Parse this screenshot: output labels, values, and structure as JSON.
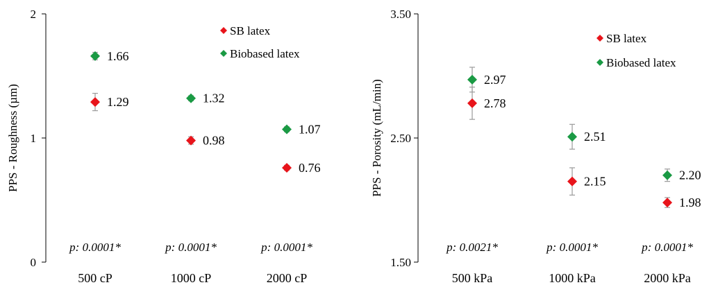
{
  "chart_data": [
    {
      "type": "scatter",
      "ylabel": "PPS - Roughness (µm)",
      "ylim": [
        0,
        2
      ],
      "yticks": [
        "0",
        "1",
        "2"
      ],
      "categories": [
        "500 cP",
        "1000 cP",
        "2000 cP"
      ],
      "series": [
        {
          "name": "SB latex",
          "color": "#e8141b",
          "values": [
            1.29,
            0.98,
            0.76
          ],
          "errors": [
            0.07,
            0.03,
            0.02
          ],
          "labels": [
            "1.29",
            "0.98",
            "0.76"
          ]
        },
        {
          "name": "Biobased latex",
          "color": "#1a9a44",
          "values": [
            1.66,
            1.32,
            1.07
          ],
          "errors": [
            0.03,
            0.02,
            0.02
          ],
          "labels": [
            "1.66",
            "1.32",
            "1.07"
          ]
        }
      ],
      "pvalues": [
        "p: 0.0001*",
        "p: 0.0001*",
        "p: 0.0001*"
      ],
      "legend_position": "top-right",
      "grid": false
    },
    {
      "type": "scatter",
      "ylabel": "PPS - Porosity (mL/min)",
      "ylim": [
        1.5,
        3.5
      ],
      "yticks": [
        "1.50",
        "2.50",
        "3.50"
      ],
      "categories": [
        "500 kPa",
        "1000 kPa",
        "2000 kPa"
      ],
      "series": [
        {
          "name": "SB latex",
          "color": "#e8141b",
          "values": [
            2.78,
            2.15,
            1.98
          ],
          "errors": [
            0.13,
            0.11,
            0.04
          ],
          "labels": [
            "2.78",
            "2.15",
            "1.98"
          ]
        },
        {
          "name": "Biobased latex",
          "color": "#1a9a44",
          "values": [
            2.97,
            2.51,
            2.2
          ],
          "errors": [
            0.1,
            0.1,
            0.05
          ],
          "labels": [
            "2.97",
            "2.51",
            "2.20"
          ]
        }
      ],
      "pvalues": [
        "p: 0.0021*",
        "p: 0.0001*",
        "p: 0.0001*"
      ],
      "legend_position": "top-right",
      "grid": false
    }
  ]
}
